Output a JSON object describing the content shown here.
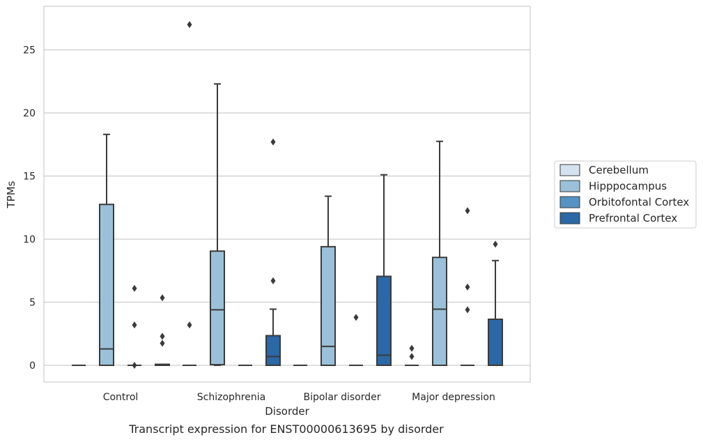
{
  "caption": "Transcript expression for ENST00000613695 by disorder",
  "chart_data": {
    "type": "boxplot",
    "xlabel": "Disorder",
    "ylabel": "TPMs",
    "ylim": [
      -1.3,
      28.3
    ],
    "yticks": [
      0,
      5,
      10,
      15,
      20,
      25
    ],
    "grid": "horizontal",
    "legend_position": "right",
    "categories": [
      "Control",
      "Schizophrenia",
      "Bipolar disorder",
      "Major depression"
    ],
    "series": [
      {
        "name": "Cerebellum",
        "color": "#d4e2ef",
        "boxes": [
          {
            "q1": 0,
            "median": 0,
            "q3": 0,
            "whisker_low": 0,
            "whisker_high": 0,
            "outliers": []
          },
          {
            "q1": 0,
            "median": 0,
            "q3": 0,
            "whisker_low": 0,
            "whisker_high": 0,
            "outliers": [
              3.2,
              27.0
            ]
          },
          {
            "q1": 0,
            "median": 0,
            "q3": 0,
            "whisker_low": 0,
            "whisker_high": 0,
            "outliers": []
          },
          {
            "q1": 0,
            "median": 0,
            "q3": 0,
            "whisker_low": 0,
            "whisker_high": 0,
            "outliers": [
              0.7,
              1.35
            ]
          }
        ]
      },
      {
        "name": "Hipppocampus",
        "color": "#9ac1d9",
        "boxes": [
          {
            "q1": 0,
            "median": 1.3,
            "q3": 12.75,
            "whisker_low": 0,
            "whisker_high": 18.3,
            "outliers": []
          },
          {
            "q1": 0.05,
            "median": 4.4,
            "q3": 9.05,
            "whisker_low": 0,
            "whisker_high": 22.3,
            "outliers": []
          },
          {
            "q1": 0,
            "median": 1.5,
            "q3": 9.4,
            "whisker_low": 0,
            "whisker_high": 13.4,
            "outliers": []
          },
          {
            "q1": 0,
            "median": 4.45,
            "q3": 8.55,
            "whisker_low": 0,
            "whisker_high": 17.75,
            "outliers": []
          }
        ]
      },
      {
        "name": "Orbitofontal Cortex",
        "color": "#5593c3",
        "boxes": [
          {
            "q1": 0,
            "median": 0,
            "q3": 0,
            "whisker_low": 0,
            "whisker_high": 0,
            "outliers": [
              0,
              3.2,
              6.1
            ]
          },
          {
            "q1": 0,
            "median": 0,
            "q3": 0,
            "whisker_low": 0,
            "whisker_high": 0,
            "outliers": []
          },
          {
            "q1": 0,
            "median": 0,
            "q3": 0,
            "whisker_low": 0,
            "whisker_high": 0,
            "outliers": [
              3.8
            ]
          },
          {
            "q1": 0,
            "median": 0,
            "q3": 0,
            "whisker_low": 0,
            "whisker_high": 0,
            "outliers": [
              4.4,
              6.2,
              12.25
            ]
          }
        ]
      },
      {
        "name": "Prefrontal Cortex",
        "color": "#2a68a6",
        "boxes": [
          {
            "q1": 0,
            "median": 0.05,
            "q3": 0.08,
            "whisker_low": 0,
            "whisker_high": 0.08,
            "outliers": [
              1.75,
              2.3,
              5.35
            ]
          },
          {
            "q1": 0,
            "median": 0.7,
            "q3": 2.35,
            "whisker_low": 0,
            "whisker_high": 4.45,
            "outliers": [
              6.7,
              17.7
            ]
          },
          {
            "q1": 0,
            "median": 0.8,
            "q3": 7.05,
            "whisker_low": 0,
            "whisker_high": 15.1,
            "outliers": []
          },
          {
            "q1": 0,
            "median": 0,
            "q3": 3.65,
            "whisker_low": 0,
            "whisker_high": 8.3,
            "outliers": [
              9.6
            ]
          }
        ]
      }
    ]
  }
}
